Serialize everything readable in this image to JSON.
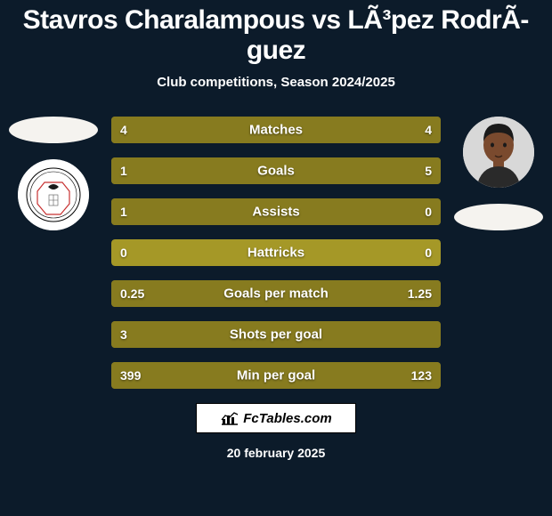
{
  "title": "Stavros Charalampous vs LÃ³pez RodrÃ­guez",
  "title_fontsize": 30,
  "subtitle": "Club competitions, Season 2024/2025",
  "subtitle_fontsize": 15,
  "background_color": "#0c1b2a",
  "player_left": {
    "flag_color": "#f5f3ef",
    "avatar_type": "club_crest",
    "crest_bg": "#ffffff",
    "crest_ring": "#000000",
    "crest_accent": "#c83232"
  },
  "player_right": {
    "flag_color": "#f5f3ef",
    "avatar_type": "photo",
    "photo_skin": "#7a4a2e",
    "photo_hair": "#1a1a1a",
    "photo_shirt": "#2a2a2a",
    "photo_bg": "#d8d8d8"
  },
  "stats": {
    "bar_bg_color": "#a59827",
    "bar_fill_color": "#877b1f",
    "label_color": "#ffffff",
    "label_fontsize": 15,
    "value_fontsize": 14,
    "rows": [
      {
        "label": "Matches",
        "left": "4",
        "right": "4",
        "left_pct": 50,
        "right_pct": 50
      },
      {
        "label": "Goals",
        "left": "1",
        "right": "5",
        "left_pct": 17,
        "right_pct": 83
      },
      {
        "label": "Assists",
        "left": "1",
        "right": "0",
        "left_pct": 100,
        "right_pct": 0
      },
      {
        "label": "Hattricks",
        "left": "0",
        "right": "0",
        "left_pct": 0,
        "right_pct": 0
      },
      {
        "label": "Goals per match",
        "left": "0.25",
        "right": "1.25",
        "left_pct": 17,
        "right_pct": 83
      },
      {
        "label": "Shots per goal",
        "left": "3",
        "right": "",
        "left_pct": 100,
        "right_pct": 0
      },
      {
        "label": "Min per goal",
        "left": "399",
        "right": "123",
        "left_pct": 76,
        "right_pct": 24
      }
    ]
  },
  "footer": {
    "brand": "FcTables.com",
    "date": "20 february 2025",
    "date_fontsize": 14
  }
}
